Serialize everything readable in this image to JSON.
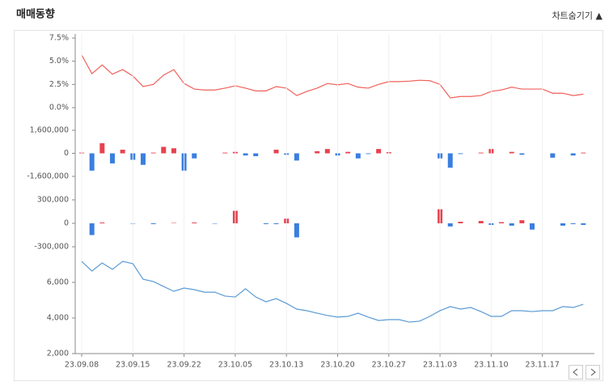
{
  "title": "매매동향",
  "toggle": "차트숨기기 ▲",
  "chart_data": [
    {
      "type": "line",
      "color": "#f0605a",
      "ylim": [
        0,
        7.5
      ],
      "yticks": [
        {
          "value": 0,
          "label": "0.0%"
        },
        {
          "value": 2.5,
          "label": "2.5%"
        },
        {
          "value": 5,
          "label": "5.0%"
        },
        {
          "value": 7.5,
          "label": "7.5%"
        }
      ],
      "values": [
        5.67,
        3.66,
        4.6,
        3.6,
        4.1,
        3.4,
        2.27,
        2.5,
        3.5,
        4.1,
        2.6,
        2.0,
        1.9,
        1.9,
        2.1,
        2.35,
        2.1,
        1.8,
        1.8,
        2.27,
        2.1,
        1.3,
        1.75,
        2.1,
        2.6,
        2.45,
        2.6,
        2.2,
        2.1,
        2.5,
        2.8,
        2.8,
        2.85,
        2.95,
        2.9,
        2.5,
        1.05,
        1.2,
        1.2,
        1.3,
        1.75,
        1.9,
        2.2,
        2.0,
        2.0,
        2.0,
        1.55,
        1.55,
        1.3,
        1.45
      ]
    },
    {
      "type": "bar",
      "positive_color": "#e8424f",
      "negative_color": "#3a7fe0",
      "ylim": [
        -1600000,
        1600000
      ],
      "yticks": [
        {
          "value": -1600000,
          "label": "-1,600,000"
        },
        0,
        {
          "value": 1600000,
          "label": "1,600,000"
        }
      ],
      "values": [
        50000,
        -1200000,
        700000,
        -700000,
        250000,
        -450000,
        -800000,
        50000,
        450000,
        350000,
        -1200000,
        -350000,
        0,
        0,
        50000,
        100000,
        -150000,
        -200000,
        0,
        250000,
        -100000,
        -500000,
        0,
        150000,
        300000,
        -150000,
        100000,
        -350000,
        -50000,
        300000,
        80000,
        0,
        0,
        0,
        0,
        -350000,
        -1000000,
        -50000,
        0,
        50000,
        300000,
        0,
        100000,
        -100000,
        0,
        0,
        -300000,
        0,
        -150000,
        50000
      ]
    },
    {
      "type": "bar",
      "positive_color": "#e8424f",
      "negative_color": "#3a7fe0",
      "ylim": [
        -300000,
        300000
      ],
      "yticks": [
        {
          "value": -300000,
          "label": "-300,000"
        },
        0,
        {
          "value": 300000,
          "label": "300,000"
        }
      ],
      "values": [
        0,
        -150000,
        10000,
        0,
        0,
        -5000,
        0,
        -10000,
        0,
        5000,
        0,
        10000,
        0,
        -5000,
        0,
        160000,
        0,
        0,
        -10000,
        -10000,
        60000,
        -180000,
        0,
        0,
        0,
        0,
        0,
        0,
        0,
        0,
        0,
        0,
        0,
        0,
        0,
        180000,
        -40000,
        20000,
        0,
        30000,
        -20000,
        15000,
        -30000,
        40000,
        -80000,
        0,
        0,
        -30000,
        -10000,
        -20000
      ]
    },
    {
      "type": "line",
      "color": "#5b9bd5",
      "ylim": [
        2000,
        7500
      ],
      "yticks": [
        {
          "value": 2000,
          "label": "2,000"
        },
        {
          "value": 4000,
          "label": "4,000"
        },
        {
          "value": 6000,
          "label": "6,000"
        }
      ],
      "categories": [
        "23.09.08",
        null,
        null,
        null,
        null,
        "23.09.15",
        null,
        null,
        null,
        null,
        "23.09.22",
        null,
        null,
        null,
        null,
        "23.10.05",
        null,
        null,
        null,
        null,
        "23.10.13",
        null,
        null,
        null,
        null,
        "23.10.20",
        null,
        null,
        null,
        null,
        "23.10.27",
        null,
        null,
        null,
        null,
        "23.11.03",
        null,
        null,
        null,
        null,
        "23.11.10",
        null,
        null,
        null,
        null,
        "23.11.17",
        null,
        null,
        null,
        null
      ],
      "values": [
        7180,
        6640,
        7090,
        6730,
        7180,
        7050,
        6180,
        6050,
        5770,
        5500,
        5680,
        5590,
        5450,
        5450,
        5230,
        5180,
        5640,
        5180,
        4910,
        5090,
        4820,
        4500,
        4410,
        4270,
        4140,
        4050,
        4090,
        4270,
        4050,
        3860,
        3910,
        3910,
        3770,
        3820,
        4090,
        4410,
        4640,
        4500,
        4590,
        4360,
        4090,
        4090,
        4410,
        4410,
        4360,
        4410,
        4410,
        4640,
        4590,
        4770
      ]
    }
  ]
}
